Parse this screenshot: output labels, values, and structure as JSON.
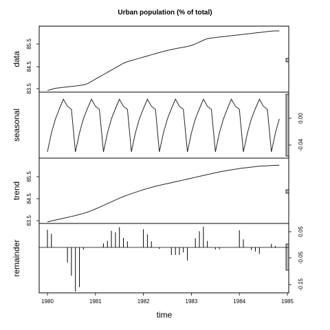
{
  "chart_data": {
    "type": "line",
    "title": "Urban population (% of total)",
    "xlabel": "time",
    "xlim": [
      1980,
      1985
    ],
    "x_ticks": [
      "1980",
      "1981",
      "1982",
      "1983",
      "1984",
      "1985"
    ],
    "x": [
      1980.0,
      1980.083,
      1980.167,
      1980.25,
      1980.333,
      1980.417,
      1980.5,
      1980.583,
      1980.667,
      1980.75,
      1980.833,
      1980.917,
      1981.0,
      1981.083,
      1981.167,
      1981.25,
      1981.333,
      1981.417,
      1981.5,
      1981.583,
      1981.667,
      1981.75,
      1981.833,
      1981.917,
      1982.0,
      1982.083,
      1982.167,
      1982.25,
      1982.333,
      1982.417,
      1982.5,
      1982.583,
      1982.667,
      1982.75,
      1982.833,
      1982.917,
      1983.0,
      1983.083,
      1983.167,
      1983.25,
      1983.333,
      1983.417,
      1983.5,
      1983.583,
      1983.667,
      1983.75,
      1983.833,
      1983.917,
      1984.0,
      1984.083,
      1984.167,
      1984.25,
      1984.333,
      1984.417,
      1984.5,
      1984.583,
      1984.667,
      1984.75,
      1984.833
    ],
    "panels": [
      {
        "ylabel": "data",
        "y_ticks": [
          "83.5",
          "84.5",
          "85.5"
        ],
        "ylim": [
          83.38,
          86.28
        ],
        "scale_bar": [
          84.88,
          84.98
        ],
        "style": "line",
        "values": [
          83.45,
          83.5,
          83.55,
          83.57,
          83.59,
          83.61,
          83.63,
          83.65,
          83.67,
          83.7,
          83.75,
          83.85,
          83.95,
          84.05,
          84.15,
          84.25,
          84.35,
          84.45,
          84.55,
          84.65,
          84.72,
          84.77,
          84.82,
          84.87,
          84.92,
          84.97,
          85.02,
          85.07,
          85.12,
          85.17,
          85.21,
          85.25,
          85.29,
          85.32,
          85.35,
          85.39,
          85.43,
          85.5,
          85.58,
          85.66,
          85.73,
          85.76,
          85.78,
          85.8,
          85.82,
          85.84,
          85.86,
          85.88,
          85.9,
          85.92,
          85.94,
          85.96,
          85.98,
          86.0,
          86.02,
          86.04,
          86.06,
          86.07,
          86.07
        ]
      },
      {
        "ylabel": "seasonal",
        "y_ticks": [
          "0.00",
          "-0.04"
        ],
        "ylim": [
          -0.058,
          0.026
        ],
        "scale_bar": [
          -0.058,
          0.026
        ],
        "style": "line",
        "values": [
          -0.05,
          -0.026,
          -0.008,
          0.005,
          0.017,
          0.008,
          0.004,
          -0.05,
          -0.026,
          -0.008,
          0.005,
          0.017,
          0.008,
          0.004,
          -0.05,
          -0.026,
          -0.008,
          0.005,
          0.017,
          0.008,
          0.004,
          -0.05,
          -0.026,
          -0.008,
          0.005,
          0.017,
          0.008,
          0.004,
          -0.05,
          -0.026,
          -0.008,
          0.005,
          0.017,
          0.008,
          0.004,
          -0.05,
          -0.026,
          -0.008,
          0.005,
          0.017,
          0.008,
          0.004,
          -0.05,
          -0.026,
          -0.008,
          0.005,
          0.017,
          0.008,
          0.004,
          -0.05,
          -0.026,
          -0.008,
          0.005,
          0.017,
          0.008,
          0.004,
          -0.05,
          -0.026,
          -0.008
        ]
      },
      {
        "ylabel": "trend",
        "y_ticks": [
          "83.5",
          "84.5",
          "85.5"
        ],
        "ylim": [
          83.38,
          86.28
        ],
        "scale_bar": [
          84.88,
          84.98
        ],
        "style": "line",
        "values": [
          83.45,
          83.49,
          83.53,
          83.57,
          83.61,
          83.65,
          83.69,
          83.73,
          83.78,
          83.83,
          83.88,
          83.95,
          84.02,
          84.1,
          84.18,
          84.26,
          84.34,
          84.42,
          84.5,
          84.57,
          84.64,
          84.7,
          84.76,
          84.82,
          84.88,
          84.93,
          84.98,
          85.03,
          85.07,
          85.11,
          85.15,
          85.19,
          85.23,
          85.27,
          85.31,
          85.35,
          85.39,
          85.43,
          85.47,
          85.51,
          85.55,
          85.59,
          85.63,
          85.67,
          85.7,
          85.73,
          85.76,
          85.79,
          85.82,
          85.84,
          85.86,
          85.88,
          85.9,
          85.92,
          85.93,
          85.94,
          85.95,
          85.96,
          85.97
        ]
      },
      {
        "ylabel": "remainder",
        "y_ticks": [
          "0.05",
          "-0.05",
          "-0.15"
        ],
        "ylim": [
          -0.18,
          0.095
        ],
        "scale_bar": [
          -0.095,
          0.0
        ],
        "style": "histogram",
        "values": [
          0.07,
          0.054,
          0.0,
          0.0,
          0.0,
          -0.06,
          -0.112,
          -0.175,
          -0.157,
          -0.008,
          0.0,
          0.0,
          0.0,
          0.0,
          0.016,
          0.026,
          0.066,
          0.06,
          0.08,
          0.038,
          0.024,
          0.0,
          0.0,
          0.0,
          0.072,
          0.052,
          0.024,
          0.0,
          -0.006,
          0.0,
          0.0,
          -0.03,
          -0.03,
          -0.03,
          -0.02,
          -0.052,
          0.0,
          0.036,
          0.064,
          0.082,
          0.026,
          0.0,
          -0.008,
          -0.007,
          0.0,
          0.0,
          0.0,
          0.0,
          0.068,
          0.032,
          0.0,
          -0.01,
          -0.016,
          -0.026,
          0.0,
          0.0,
          0.014,
          0.006,
          0.0
        ]
      }
    ]
  }
}
